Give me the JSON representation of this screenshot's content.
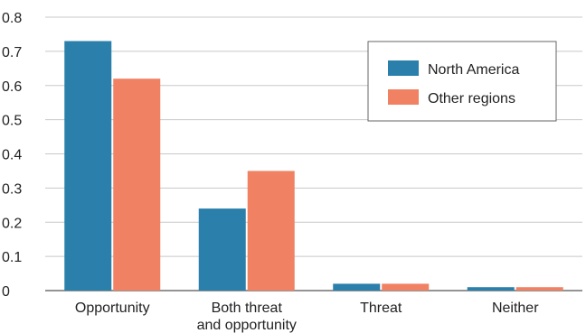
{
  "chart_data": {
    "type": "bar",
    "categories": [
      [
        "Opportunity"
      ],
      [
        "Both threat",
        "and opportunity"
      ],
      [
        "Threat"
      ],
      [
        "Neither"
      ]
    ],
    "series": [
      {
        "name": "North America",
        "color": "#2a80aa",
        "values": [
          0.73,
          0.24,
          0.02,
          0.01
        ]
      },
      {
        "name": "Other regions",
        "color": "#f08163",
        "values": [
          0.62,
          0.35,
          0.02,
          0.01
        ]
      }
    ],
    "ylim": [
      0,
      0.8
    ],
    "yticks": [
      "0",
      "0.1",
      "0.2",
      "0.3",
      "0.4",
      "0.5",
      "0.6",
      "0.7",
      "0.8"
    ],
    "grid": true,
    "legend_position": "top-right",
    "title": "",
    "xlabel": "",
    "ylabel": ""
  }
}
